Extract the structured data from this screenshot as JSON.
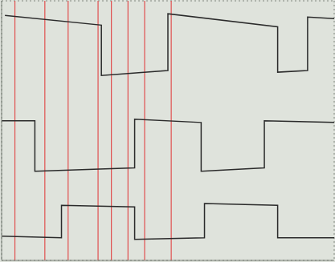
{
  "chart_data": {
    "type": "line",
    "tick_labels": false,
    "grid": true,
    "xlim": [
      0,
      10
    ],
    "xticks": [
      0,
      1,
      2,
      3,
      4,
      5,
      6,
      7,
      8,
      9,
      10
    ],
    "ylim": [
      0,
      8
    ],
    "yticks": [
      0,
      1,
      2,
      3,
      4,
      5,
      6,
      7,
      8
    ],
    "series": [
      {
        "color": "#2b2b2b",
        "x": [
          0.1,
          3.0,
          3.0,
          5.0,
          5.0,
          8.3,
          8.3,
          9.2,
          9.2,
          10
        ],
        "values": [
          7.55,
          7.25,
          5.7,
          5.85,
          7.6,
          7.2,
          5.8,
          5.85,
          7.5,
          7.45
        ]
      },
      {
        "color": "#2b2b2b",
        "x": [
          0,
          1.0,
          1.0,
          4.0,
          4.0,
          6.0,
          6.0,
          7.9,
          7.9,
          10
        ],
        "values": [
          4.3,
          4.3,
          2.75,
          2.85,
          4.35,
          4.25,
          2.75,
          2.85,
          4.3,
          4.25
        ]
      },
      {
        "color": "#2b2b2b",
        "x": [
          0,
          1.8,
          1.8,
          4.0,
          4.0,
          6.1,
          6.1,
          8.3,
          8.3,
          10
        ],
        "values": [
          0.75,
          0.7,
          1.7,
          1.65,
          0.65,
          0.7,
          1.75,
          1.7,
          0.7,
          0.7
        ]
      }
    ],
    "vertical_lines": {
      "color": "#e05050",
      "x": [
        0.4,
        1.3,
        2.0,
        2.9,
        3.3,
        3.8,
        4.3,
        5.1
      ]
    }
  }
}
